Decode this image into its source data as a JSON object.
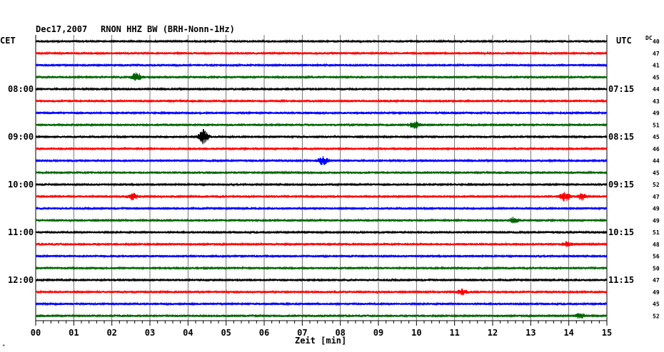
{
  "header": {
    "date": "Dec17,2007",
    "station": "RNON HHZ BW (BRH-Nonn-1Hz)",
    "left_tz": "CET",
    "right_tz": "UTC",
    "dc_label": "DC"
  },
  "chart_data": {
    "type": "line",
    "title": "RNON HHZ BW (BRH-Nonn-1Hz)",
    "xlabel": "Zeit [min]",
    "xlim": [
      0,
      15
    ],
    "x_ticks": [
      "00",
      "01",
      "02",
      "03",
      "04",
      "05",
      "06",
      "07",
      "08",
      "09",
      "10",
      "11",
      "12",
      "13",
      "14",
      "15"
    ],
    "left_time_labels": [
      {
        "row": 4,
        "label": "08:00"
      },
      {
        "row": 8,
        "label": "09:00"
      },
      {
        "row": 12,
        "label": "10:00"
      },
      {
        "row": 16,
        "label": "11:00"
      },
      {
        "row": 20,
        "label": "12:00"
      }
    ],
    "right_time_labels": [
      {
        "row": 4,
        "label": "07:15"
      },
      {
        "row": 8,
        "label": "08:15"
      },
      {
        "row": 12,
        "label": "09:15"
      },
      {
        "row": 16,
        "label": "10:15"
      },
      {
        "row": 20,
        "label": "11:15"
      }
    ],
    "dc_values": [
      "40",
      "47",
      "41",
      "45",
      "44",
      "43",
      "49",
      "51",
      "45",
      "46",
      "44",
      "45",
      "52",
      "47",
      "49",
      "49",
      "51",
      "48",
      "56",
      "50",
      "47",
      "49",
      "45",
      "52"
    ],
    "trace_colors": [
      "#000000",
      "#ff0000",
      "#0000ff",
      "#006400"
    ],
    "bursts": [
      {
        "row": 3,
        "t": 2.65,
        "amp": 1.0
      },
      {
        "row": 7,
        "t": 9.95,
        "amp": 0.8
      },
      {
        "row": 8,
        "t": 4.4,
        "amp": 1.6
      },
      {
        "row": 10,
        "t": 7.55,
        "amp": 0.9
      },
      {
        "row": 13,
        "t": 2.55,
        "amp": 0.8
      },
      {
        "row": 13,
        "t": 13.9,
        "amp": 1.0
      },
      {
        "row": 13,
        "t": 14.35,
        "amp": 0.7
      },
      {
        "row": 15,
        "t": 12.55,
        "amp": 0.6
      },
      {
        "row": 17,
        "t": 13.95,
        "amp": 0.5
      },
      {
        "row": 21,
        "t": 11.2,
        "amp": 0.6
      },
      {
        "row": 23,
        "t": 14.3,
        "amp": 0.5
      }
    ]
  }
}
